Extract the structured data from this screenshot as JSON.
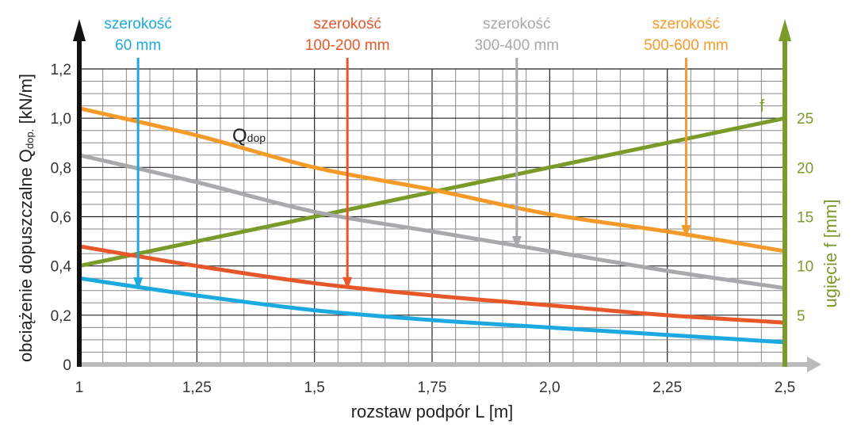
{
  "chart_data": {
    "type": "line",
    "xlabel": "rozstaw podpór L [m]",
    "ylabel": "obciążenie dopuszczalne Q",
    "ylabel_sub": "dop.",
    "ylabel_unit": "[kN/m]",
    "y2label": "ugięcie f [mm]",
    "xlim": [
      1,
      2.5
    ],
    "ylim": [
      0,
      1.2
    ],
    "y2lim": [
      0,
      30
    ],
    "grid": true,
    "x_ticks": [
      "1",
      "1,25",
      "1,5",
      "1,75",
      "2,0",
      "2,25",
      "2,5"
    ],
    "x_tick_values": [
      1,
      1.25,
      1.5,
      1.75,
      2.0,
      2.25,
      2.5
    ],
    "y_ticks": [
      "0",
      "0,2",
      "0,4",
      "0,6",
      "0,8",
      "1,0",
      "1,2"
    ],
    "y_tick_values": [
      0,
      0.2,
      0.4,
      0.6,
      0.8,
      1.0,
      1.2
    ],
    "y2_ticks": [
      "5",
      "10",
      "15",
      "20",
      "25"
    ],
    "y2_tick_values": [
      5,
      10,
      15,
      20,
      25
    ],
    "x": [
      1,
      1.25,
      1.5,
      1.75,
      2.0,
      2.25,
      2.5
    ],
    "series": [
      {
        "name": "szerokość 60 mm",
        "line1": "szerokość",
        "line2": "60 mm",
        "color": "#1ba9e0",
        "values": [
          0.35,
          0.28,
          0.22,
          0.18,
          0.15,
          0.12,
          0.09
        ],
        "arrow_x": 1.125
      },
      {
        "name": "szerokość 100-200 mm",
        "line1": "szerokość",
        "line2": "100-200 mm",
        "color": "#e8572a",
        "values": [
          0.48,
          0.4,
          0.33,
          0.28,
          0.24,
          0.2,
          0.17
        ],
        "arrow_x": 1.57
      },
      {
        "name": "szerokość 300-400 mm",
        "line1": "szerokość",
        "line2": "300-400 mm",
        "color": "#a7a9ac",
        "values": [
          0.85,
          0.74,
          0.62,
          0.54,
          0.46,
          0.38,
          0.31
        ],
        "arrow_x": 1.93
      },
      {
        "name": "szerokość 500-600 mm",
        "line1": "szerokość",
        "line2": "500-600 mm",
        "color": "#f39a2a",
        "values": [
          1.04,
          0.93,
          0.8,
          0.71,
          0.61,
          0.54,
          0.46
        ],
        "arrow_x": 2.29
      }
    ],
    "deflection": {
      "name": "f",
      "color": "#7a9a2a",
      "axis": "right",
      "x": [
        1,
        2.5
      ],
      "values": [
        10,
        25
      ]
    },
    "annotations": {
      "q_label": "Q",
      "q_label_sub": "dop",
      "f_label": "f"
    }
  }
}
